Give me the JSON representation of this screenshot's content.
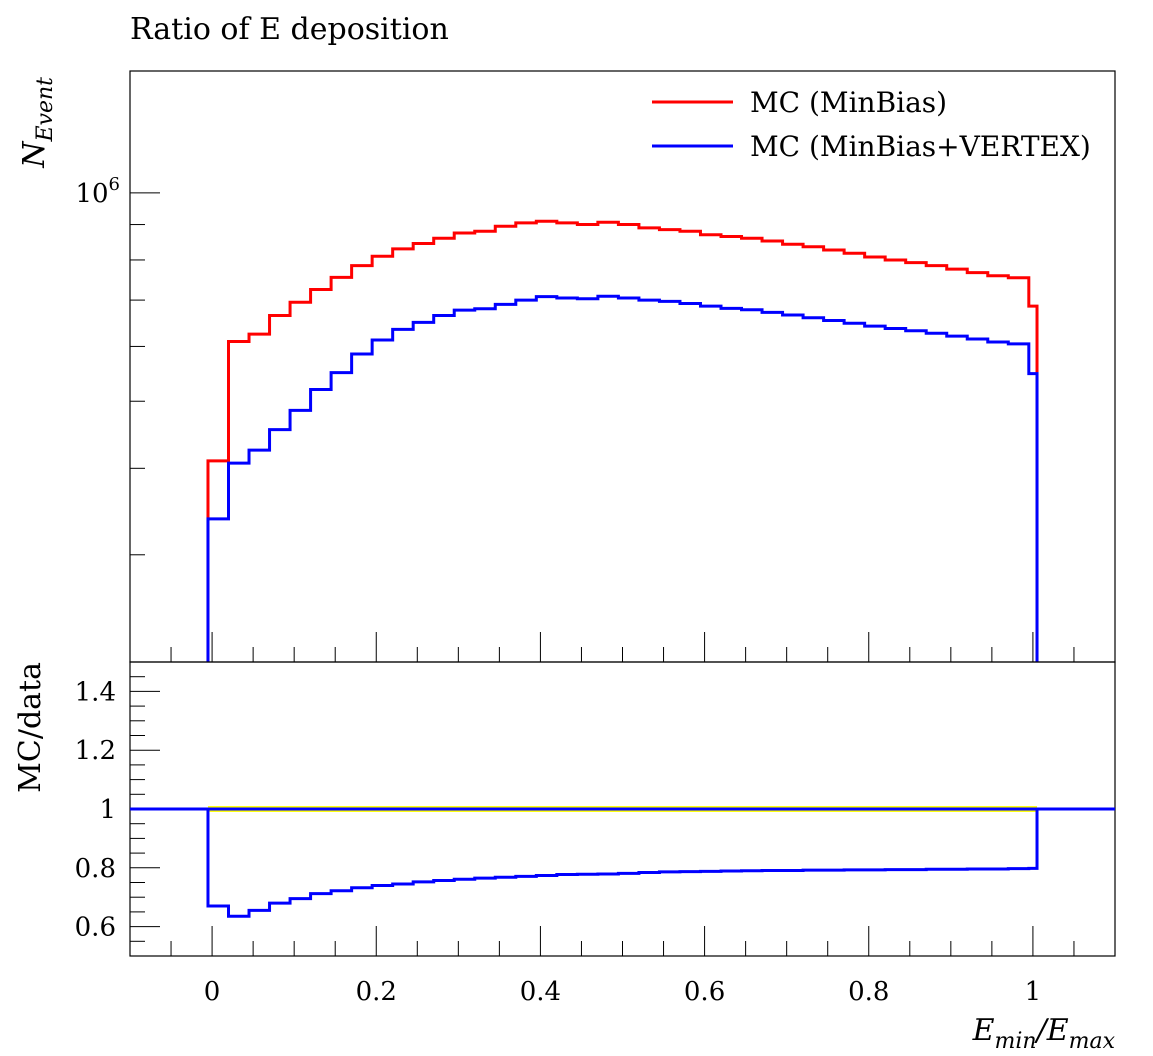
{
  "title": "Ratio of E deposition",
  "chart_data": [
    {
      "type": "line",
      "panel": "main",
      "ylabel_main": "N",
      "ylabel_sub": "Event",
      "yscale": "log",
      "ylim": [
        210000,
        1500000
      ],
      "xlim": [
        -0.1,
        1.1
      ],
      "ytick_base": "10",
      "ytick_exp": "6",
      "bin_edges": [
        -0.005,
        0.02,
        0.045,
        0.07,
        0.095,
        0.12,
        0.145,
        0.17,
        0.195,
        0.22,
        0.245,
        0.27,
        0.295,
        0.32,
        0.345,
        0.37,
        0.395,
        0.42,
        0.445,
        0.47,
        0.495,
        0.52,
        0.545,
        0.57,
        0.595,
        0.62,
        0.645,
        0.67,
        0.695,
        0.72,
        0.745,
        0.77,
        0.795,
        0.82,
        0.845,
        0.87,
        0.895,
        0.92,
        0.945,
        0.97,
        0.995,
        1.005
      ],
      "legend_position": "top-right",
      "series": [
        {
          "name": "MC (MinBias)",
          "color": "#ff0000",
          "values": [
            410000,
            610000,
            625000,
            665000,
            695000,
            725000,
            755000,
            785000,
            810000,
            830000,
            845000,
            860000,
            875000,
            880000,
            895000,
            905000,
            910000,
            905000,
            900000,
            907000,
            900000,
            890000,
            885000,
            880000,
            870000,
            865000,
            860000,
            852000,
            843000,
            836000,
            827000,
            818000,
            808000,
            800000,
            793000,
            785000,
            776000,
            767000,
            759000,
            754000,
            686000
          ]
        },
        {
          "name": "MC (MinBias+VERTEX)",
          "color": "#0000ff",
          "values": [
            338000,
            407000,
            425000,
            455000,
            485000,
            520000,
            550000,
            585000,
            613000,
            635000,
            650000,
            665000,
            677000,
            680000,
            690000,
            700000,
            708000,
            705000,
            703000,
            709000,
            705000,
            700000,
            697000,
            692000,
            686000,
            681000,
            678000,
            672000,
            666000,
            660000,
            654000,
            648000,
            642000,
            637000,
            632000,
            627000,
            621000,
            615000,
            609000,
            605000,
            548000
          ]
        }
      ]
    },
    {
      "type": "line",
      "panel": "ratio",
      "ylabel": "MC/data",
      "ylim": [
        0.5,
        1.5
      ],
      "xlim": [
        -0.1,
        1.1
      ],
      "xlabel_main": "E",
      "xlabel_sub1": "min",
      "xlabel_sep": "/E",
      "xlabel_sub2": "max",
      "y_ticks": [
        "0.6",
        "0.8",
        "1",
        "1.2",
        "1.4"
      ],
      "y_tick_values": [
        0.6,
        0.8,
        1.0,
        1.2,
        1.4
      ],
      "x_ticks": [
        "0",
        "0.2",
        "0.4",
        "0.6",
        "0.8",
        "1"
      ],
      "x_tick_values": [
        0,
        0.2,
        0.4,
        0.6,
        0.8,
        1.0
      ],
      "reference": {
        "color": "#0000ff",
        "value": 1.0
      },
      "band": {
        "color": "#ffff00",
        "low": 0.99,
        "high": 1.01
      },
      "series": [
        {
          "name": "MC (MinBias+VERTEX)",
          "color": "#0000ff",
          "values": [
            0.67,
            0.635,
            0.655,
            0.68,
            0.695,
            0.712,
            0.722,
            0.732,
            0.74,
            0.745,
            0.752,
            0.757,
            0.761,
            0.765,
            0.768,
            0.771,
            0.774,
            0.777,
            0.778,
            0.779,
            0.781,
            0.784,
            0.786,
            0.787,
            0.788,
            0.789,
            0.79,
            0.791,
            0.791,
            0.792,
            0.792,
            0.793,
            0.793,
            0.794,
            0.794,
            0.795,
            0.795,
            0.796,
            0.796,
            0.797,
            0.798
          ]
        }
      ]
    }
  ]
}
